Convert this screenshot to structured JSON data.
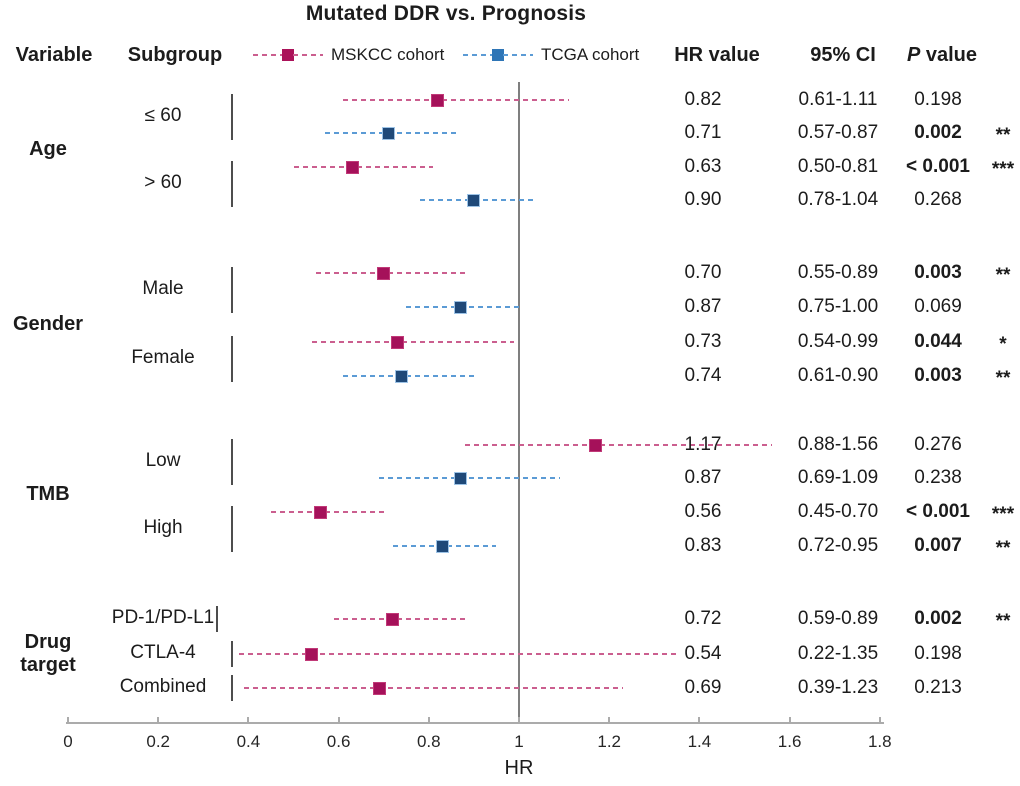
{
  "title": "Mutated DDR vs. Prognosis",
  "header": {
    "variable": "Variable",
    "subgroup": "Subgroup",
    "hr": "HR value",
    "ci": "95% CI",
    "p_italic": "P",
    "p_rest": " value"
  },
  "colors": {
    "text": "#1c1c1c",
    "mskcc_line": "#cb5e8f",
    "mskcc_marker": "#a5115a",
    "mskcc_marker_border": "#c13a78",
    "mskcc_legend": "#ab1259",
    "tcga_line": "#5b9bd5",
    "tcga_marker": "#1f4979",
    "tcga_marker_border": "#9dc3e6",
    "tcga_legend": "#2e75b6",
    "ref_line": "#7f7f7f",
    "axis": "#ababab",
    "bracket": "#4d4d4d"
  },
  "chart_data": {
    "type": "forest",
    "title": "Mutated DDR vs. Prognosis",
    "xlabel": "HR",
    "xlim": [
      0,
      1.8
    ],
    "reference_line": 1,
    "grid": false,
    "legend_position": "top",
    "x_ticks": [
      {
        "value": 0,
        "label": "0"
      },
      {
        "value": 0.2,
        "label": "0.2"
      },
      {
        "value": 0.4,
        "label": "0.4"
      },
      {
        "value": 0.6,
        "label": "0.6"
      },
      {
        "value": 0.8,
        "label": "0.8"
      },
      {
        "value": 1,
        "label": "1"
      },
      {
        "value": 1.2,
        "label": "1.2"
      },
      {
        "value": 1.4,
        "label": "1.4"
      },
      {
        "value": 1.6,
        "label": "1.6"
      },
      {
        "value": 1.8,
        "label": "1.8"
      }
    ],
    "legend": [
      {
        "series": "MSKCC",
        "label": "MSKCC cohort"
      },
      {
        "series": "TCGA",
        "label": "TCGA cohort"
      }
    ],
    "groups": [
      {
        "variable": "Age",
        "subgroups": [
          {
            "label": "≤ 60",
            "rows": [
              {
                "cohort": "MSKCC",
                "hr": 0.82,
                "ci_low": 0.61,
                "ci_high": 1.11,
                "hr_text": "0.82",
                "ci_text": "0.61-1.11",
                "p_text": "0.198",
                "significant": false,
                "stars": ""
              },
              {
                "cohort": "TCGA",
                "hr": 0.71,
                "ci_low": 0.57,
                "ci_high": 0.87,
                "hr_text": "0.71",
                "ci_text": "0.57-0.87",
                "p_text": "0.002",
                "significant": true,
                "stars": "**"
              }
            ]
          },
          {
            "label": "> 60",
            "rows": [
              {
                "cohort": "MSKCC",
                "hr": 0.63,
                "ci_low": 0.5,
                "ci_high": 0.81,
                "hr_text": "0.63",
                "ci_text": "0.50-0.81",
                "p_text": "< 0.001",
                "significant": true,
                "stars": "***"
              },
              {
                "cohort": "TCGA",
                "hr": 0.9,
                "ci_low": 0.78,
                "ci_high": 1.04,
                "hr_text": "0.90",
                "ci_text": "0.78-1.04",
                "p_text": "0.268",
                "significant": false,
                "stars": ""
              }
            ]
          }
        ]
      },
      {
        "variable": "Gender",
        "subgroups": [
          {
            "label": "Male",
            "rows": [
              {
                "cohort": "MSKCC",
                "hr": 0.7,
                "ci_low": 0.55,
                "ci_high": 0.89,
                "hr_text": "0.70",
                "ci_text": "0.55-0.89",
                "p_text": "0.003",
                "significant": true,
                "stars": "**"
              },
              {
                "cohort": "TCGA",
                "hr": 0.87,
                "ci_low": 0.75,
                "ci_high": 1.0,
                "hr_text": "0.87",
                "ci_text": "0.75-1.00",
                "p_text": "0.069",
                "significant": false,
                "stars": ""
              }
            ]
          },
          {
            "label": "Female",
            "rows": [
              {
                "cohort": "MSKCC",
                "hr": 0.73,
                "ci_low": 0.54,
                "ci_high": 0.99,
                "hr_text": "0.73",
                "ci_text": "0.54-0.99",
                "p_text": "0.044",
                "significant": true,
                "stars": "*"
              },
              {
                "cohort": "TCGA",
                "hr": 0.74,
                "ci_low": 0.61,
                "ci_high": 0.9,
                "hr_text": "0.74",
                "ci_text": "0.61-0.90",
                "p_text": "0.003",
                "significant": true,
                "stars": "**"
              }
            ]
          }
        ]
      },
      {
        "variable": "TMB",
        "subgroups": [
          {
            "label": "Low",
            "rows": [
              {
                "cohort": "MSKCC",
                "hr": 1.17,
                "ci_low": 0.88,
                "ci_high": 1.56,
                "hr_text": "1.17",
                "ci_text": "0.88-1.56",
                "p_text": "0.276",
                "significant": false,
                "stars": ""
              },
              {
                "cohort": "TCGA",
                "hr": 0.87,
                "ci_low": 0.69,
                "ci_high": 1.09,
                "hr_text": "0.87",
                "ci_text": "0.69-1.09",
                "p_text": "0.238",
                "significant": false,
                "stars": ""
              }
            ]
          },
          {
            "label": "High",
            "rows": [
              {
                "cohort": "MSKCC",
                "hr": 0.56,
                "ci_low": 0.45,
                "ci_high": 0.7,
                "hr_text": "0.56",
                "ci_text": "0.45-0.70",
                "p_text": "< 0.001",
                "significant": true,
                "stars": "***"
              },
              {
                "cohort": "TCGA",
                "hr": 0.83,
                "ci_low": 0.72,
                "ci_high": 0.95,
                "hr_text": "0.83",
                "ci_text": "0.72-0.95",
                "p_text": "0.007",
                "significant": true,
                "stars": "**"
              }
            ]
          }
        ]
      },
      {
        "variable": "Drug target",
        "subgroups": [
          {
            "label": "PD-1/PD-L1",
            "rows": [
              {
                "cohort": "MSKCC",
                "hr": 0.72,
                "ci_low": 0.59,
                "ci_high": 0.89,
                "hr_text": "0.72",
                "ci_text": "0.59-0.89",
                "p_text": "0.002",
                "significant": true,
                "stars": "**"
              }
            ]
          },
          {
            "label": "CTLA-4",
            "rows": [
              {
                "cohort": "MSKCC",
                "hr": 0.54,
                "ci_low": 0.22,
                "ci_high": 1.35,
                "hr_text": "0.54",
                "ci_text": "0.22-1.35",
                "p_text": "0.198",
                "significant": false,
                "stars": ""
              }
            ]
          },
          {
            "label": "Combined",
            "rows": [
              {
                "cohort": "MSKCC",
                "hr": 0.69,
                "ci_low": 0.39,
                "ci_high": 1.23,
                "hr_text": "0.69",
                "ci_text": "0.39-1.23",
                "p_text": "0.213",
                "significant": false,
                "stars": ""
              }
            ]
          }
        ]
      }
    ]
  }
}
